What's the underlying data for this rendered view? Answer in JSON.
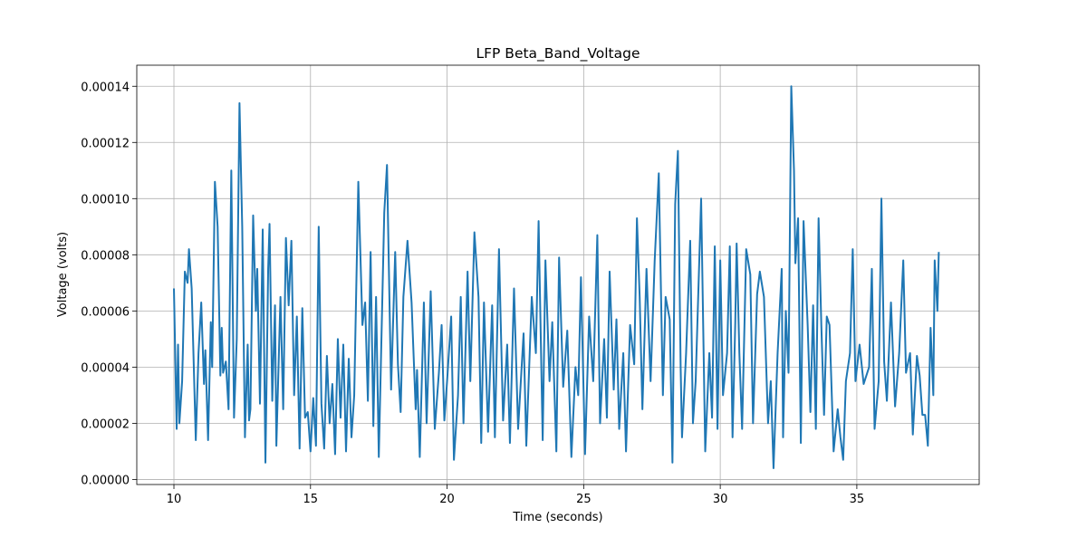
{
  "chart_data": {
    "type": "line",
    "title": "LFP Beta_Band_Voltage",
    "x_label": "Time (seconds)",
    "y_label": "Voltage (volts)",
    "color": "#1f77b4",
    "grid": true,
    "xlim": [
      8.64,
      39.48
    ],
    "ylim": [
      -1.8e-06,
      0.0001475
    ],
    "xticks": [
      10,
      15,
      20,
      25,
      30,
      35
    ],
    "yticks": [
      {
        "value": 0,
        "label": "0.00000"
      },
      {
        "value": 2e-05,
        "label": "0.00002"
      },
      {
        "value": 4e-05,
        "label": "0.00004"
      },
      {
        "value": 6e-05,
        "label": "0.00006"
      },
      {
        "value": 8e-05,
        "label": "0.00008"
      },
      {
        "value": 0.0001,
        "label": "0.00010"
      },
      {
        "value": 0.00012,
        "label": "0.00012"
      },
      {
        "value": 0.00014,
        "label": "0.00014"
      }
    ],
    "x": [
      10.0,
      10.1,
      10.15,
      10.2,
      10.3,
      10.4,
      10.5,
      10.55,
      10.65,
      10.8,
      10.9,
      11.0,
      11.1,
      11.15,
      11.25,
      11.35,
      11.4,
      11.5,
      11.6,
      11.7,
      11.75,
      11.8,
      11.9,
      12.0,
      12.1,
      12.2,
      12.3,
      12.4,
      12.5,
      12.6,
      12.7,
      12.75,
      12.8,
      12.9,
      13.0,
      13.05,
      13.15,
      13.25,
      13.35,
      13.45,
      13.5,
      13.6,
      13.7,
      13.75,
      13.9,
      14.0,
      14.1,
      14.2,
      14.3,
      14.4,
      14.5,
      14.6,
      14.7,
      14.8,
      14.9,
      15.0,
      15.1,
      15.2,
      15.3,
      15.4,
      15.5,
      15.6,
      15.7,
      15.8,
      15.9,
      16.0,
      16.1,
      16.2,
      16.3,
      16.4,
      16.5,
      16.6,
      16.75,
      16.9,
      17.0,
      17.1,
      17.2,
      17.3,
      17.4,
      17.5,
      17.7,
      17.8,
      17.95,
      18.1,
      18.2,
      18.3,
      18.4,
      18.55,
      18.7,
      18.85,
      18.9,
      19.0,
      19.15,
      19.25,
      19.4,
      19.55,
      19.7,
      19.8,
      19.9,
      20.0,
      20.15,
      20.25,
      20.4,
      20.5,
      20.6,
      20.75,
      20.85,
      21.0,
      21.15,
      21.25,
      21.35,
      21.5,
      21.65,
      21.75,
      21.9,
      22.05,
      22.2,
      22.3,
      22.45,
      22.6,
      22.8,
      22.9,
      23.1,
      23.25,
      23.35,
      23.5,
      23.6,
      23.75,
      23.85,
      24.0,
      24.1,
      24.25,
      24.4,
      24.55,
      24.7,
      24.8,
      24.9,
      25.05,
      25.2,
      25.35,
      25.5,
      25.6,
      25.75,
      25.85,
      25.95,
      26.1,
      26.2,
      26.3,
      26.45,
      26.55,
      26.7,
      26.85,
      26.95,
      27.05,
      27.15,
      27.3,
      27.45,
      27.6,
      27.75,
      27.9,
      28.0,
      28.15,
      28.25,
      28.35,
      28.45,
      28.55,
      28.6,
      28.75,
      28.9,
      29.0,
      29.1,
      29.3,
      29.45,
      29.6,
      29.7,
      29.8,
      29.9,
      30.0,
      30.1,
      30.25,
      30.35,
      30.45,
      30.55,
      30.6,
      30.7,
      30.8,
      30.95,
      31.1,
      31.2,
      31.35,
      31.45,
      31.6,
      31.75,
      31.85,
      31.95,
      32.1,
      32.25,
      32.3,
      32.4,
      32.5,
      32.6,
      32.7,
      32.75,
      32.85,
      32.95,
      33.05,
      33.2,
      33.3,
      33.4,
      33.5,
      33.6,
      33.7,
      33.8,
      33.9,
      34.0,
      34.15,
      34.3,
      34.4,
      34.5,
      34.6,
      34.75,
      34.85,
      34.95,
      35.1,
      35.25,
      35.45,
      35.55,
      35.65,
      35.8,
      35.9,
      36.0,
      36.1,
      36.25,
      36.4,
      36.55,
      36.7,
      36.8,
      36.95,
      37.05,
      37.2,
      37.3,
      37.4,
      37.5,
      37.6,
      37.7,
      37.8,
      37.85,
      37.95,
      38.0
    ],
    "values": [
      6.8e-05,
      1.8e-05,
      4.8e-05,
      2e-05,
      3.5e-05,
      7.4e-05,
      7e-05,
      8.2e-05,
      6.8e-05,
      1.4e-05,
      4.5e-05,
      6.3e-05,
      3.4e-05,
      4.6e-05,
      1.4e-05,
      5.6e-05,
      4e-05,
      0.000106,
      9e-05,
      3.7e-05,
      5.4e-05,
      3.8e-05,
      4.2e-05,
      2.5e-05,
      0.00011,
      2.2e-05,
      5e-05,
      0.000134,
      9e-05,
      1.5e-05,
      4.8e-05,
      2.1e-05,
      2.5e-05,
      9.4e-05,
      6e-05,
      7.5e-05,
      2.7e-05,
      8.9e-05,
      6e-06,
      7.5e-05,
      9.1e-05,
      2.8e-05,
      6.2e-05,
      1.2e-05,
      6.5e-05,
      2.5e-05,
      8.6e-05,
      6.2e-05,
      8.5e-05,
      3e-05,
      5.8e-05,
      1.1e-05,
      6.1e-05,
      2.2e-05,
      2.4e-05,
      1e-05,
      2.9e-05,
      1.2e-05,
      9e-05,
      2.7e-05,
      1.1e-05,
      4.4e-05,
      2e-05,
      3.4e-05,
      9e-06,
      5e-05,
      2.2e-05,
      4.8e-05,
      1e-05,
      4.3e-05,
      1.5e-05,
      3e-05,
      0.000106,
      5.5e-05,
      6.3e-05,
      2.8e-05,
      8.1e-05,
      1.9e-05,
      6.5e-05,
      8e-06,
      9.5e-05,
      0.000112,
      3.2e-05,
      8.1e-05,
      4.1e-05,
      2.4e-05,
      6.5e-05,
      8.5e-05,
      6.3e-05,
      2.5e-05,
      3.9e-05,
      8e-06,
      6.3e-05,
      2e-05,
      6.7e-05,
      1.8e-05,
      3.8e-05,
      5.5e-05,
      2.1e-05,
      3.5e-05,
      5.8e-05,
      7e-06,
      3e-05,
      6.5e-05,
      2e-05,
      7.4e-05,
      3.5e-05,
      8.8e-05,
      6.5e-05,
      1.3e-05,
      6.3e-05,
      1.7e-05,
      6.2e-05,
      1.5e-05,
      8.2e-05,
      2.1e-05,
      4.8e-05,
      1.3e-05,
      6.8e-05,
      1.8e-05,
      5.2e-05,
      1.2e-05,
      6.5e-05,
      4.5e-05,
      9.2e-05,
      1.4e-05,
      7.8e-05,
      3.5e-05,
      5.6e-05,
      1e-05,
      7.9e-05,
      3.3e-05,
      5.3e-05,
      8e-06,
      4e-05,
      3e-05,
      7.2e-05,
      9e-06,
      5.8e-05,
      3.5e-05,
      8.7e-05,
      2e-05,
      5e-05,
      2.2e-05,
      7.4e-05,
      3.2e-05,
      5.7e-05,
      1.8e-05,
      4.5e-05,
      1e-05,
      5.5e-05,
      4.1e-05,
      9.3e-05,
      6.5e-05,
      2.5e-05,
      7.5e-05,
      3.5e-05,
      7.8e-05,
      0.000109,
      3e-05,
      6.5e-05,
      5.7e-05,
      6e-06,
      9.8e-05,
      0.000117,
      4e-05,
      1.5e-05,
      4.5e-05,
      8.5e-05,
      2e-05,
      3.5e-05,
      0.0001,
      1e-05,
      4.5e-05,
      2.2e-05,
      8.3e-05,
      1.8e-05,
      7.8e-05,
      3e-05,
      4.5e-05,
      8.3e-05,
      1.5e-05,
      5.6e-05,
      8.4e-05,
      4.5e-05,
      1.8e-05,
      8.2e-05,
      7.3e-05,
      2e-05,
      6.6e-05,
      7.4e-05,
      6.5e-05,
      2e-05,
      3.5e-05,
      4e-06,
      4.5e-05,
      7.5e-05,
      1.5e-05,
      6e-05,
      3.8e-05,
      0.00014,
      0.00011,
      7.7e-05,
      9.3e-05,
      1.3e-05,
      9.2e-05,
      5.5e-05,
      2.4e-05,
      6.2e-05,
      1.8e-05,
      9.3e-05,
      5.5e-05,
      2.3e-05,
      5.8e-05,
      5.5e-05,
      1e-05,
      2.5e-05,
      1.5e-05,
      7e-06,
      3.5e-05,
      4.5e-05,
      8.2e-05,
      3.5e-05,
      4.8e-05,
      3.4e-05,
      4e-05,
      7.5e-05,
      1.8e-05,
      3.5e-05,
      0.0001,
      4.2e-05,
      2.8e-05,
      6.3e-05,
      2.6e-05,
      4.5e-05,
      7.8e-05,
      3.8e-05,
      4.5e-05,
      1.6e-05,
      4.4e-05,
      3.7e-05,
      2.3e-05,
      2.3e-05,
      1.2e-05,
      5.4e-05,
      3e-05,
      7.8e-05,
      6e-05,
      8.1e-05
    ]
  }
}
